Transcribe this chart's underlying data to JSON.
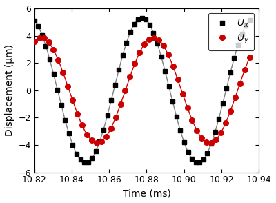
{
  "title": "",
  "xlabel": "Time (ms)",
  "ylabel": "Displacement (μm)",
  "xlim": [
    10.82,
    10.94
  ],
  "ylim": [
    -6,
    6
  ],
  "xticks": [
    10.82,
    10.84,
    10.86,
    10.88,
    10.9,
    10.92,
    10.94
  ],
  "yticks": [
    -6,
    -4,
    -2,
    0,
    2,
    4,
    6
  ],
  "t_start": 10.82,
  "t_end": 10.935,
  "n_points_ux": 57,
  "n_points_uy": 46,
  "ux_amplitude": 5.3,
  "freq_cycles_per_ms": 16.67,
  "ux_phase_rad": 0.27,
  "uy_amplitude": 3.85,
  "uy_phase_rad": -0.38,
  "line_color_ux": "#808080",
  "marker_color_ux": "#000000",
  "line_color_uy": "#cc0000",
  "marker_color_uy": "#cc0000",
  "legend_ux": "$U_x$",
  "legend_uy": "$U_y$",
  "marker_size_ux": 4.5,
  "marker_size_uy": 5.5,
  "linewidth": 1.0,
  "background_color": "#ffffff"
}
